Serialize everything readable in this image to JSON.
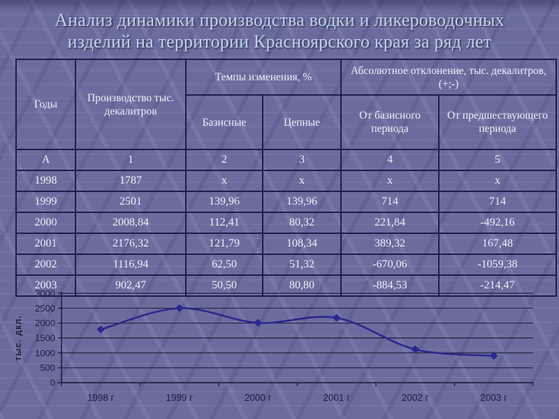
{
  "slide": {
    "title_lines": [
      "Анализ динамики производства водки и ликероводочных",
      "изделий на территории Красноярского края за ряд лет"
    ]
  },
  "table": {
    "header": {
      "col_years": "Годы",
      "col_production": "Производство тыс. декалитров",
      "group_rates": "Темпы изменения, %",
      "col_base": "Базисные",
      "col_chain": "Цепные",
      "group_abs": "Абсолютное отклонение, тыс. декалитров,  (+;-)",
      "col_from_base": "От базисного периода",
      "col_from_prev": "От предшес­твующего периода"
    },
    "rows": [
      [
        "А",
        "1",
        "2",
        "3",
        "4",
        "5"
      ],
      [
        "1998",
        "1787",
        "х",
        "х",
        "х",
        "х"
      ],
      [
        "1999",
        "2501",
        "139,96",
        "139,96",
        "714",
        "714"
      ],
      [
        "2000",
        "2008,84",
        "112,41",
        "80,32",
        "221,84",
        "-492,16"
      ],
      [
        "2001",
        "2176,32",
        "121,79",
        "108,34",
        "389,32",
        "167,48"
      ],
      [
        "2002",
        "1116,94",
        "62,50",
        "51,32",
        "-670,06",
        "-1059,38"
      ],
      [
        "2003",
        "902,47",
        "50,50",
        "80,80",
        "-884,53",
        "-214,47"
      ]
    ]
  },
  "chart_data": {
    "type": "line",
    "categories": [
      "1998 г",
      "1999 г",
      "2000 г",
      "2001 г",
      "2002 г",
      "2003 г"
    ],
    "series": [
      {
        "name": "Производство, тыс. декалитров",
        "values": [
          1787,
          2501,
          2008.84,
          2176.32,
          1116.94,
          902.47
        ]
      }
    ],
    "title": "",
    "xlabel": "",
    "ylabel": "тыс. дкл.",
    "ylim": [
      0,
      3000
    ],
    "yticks": [
      0,
      500,
      1000,
      1500,
      2000,
      2500,
      3000
    ],
    "grid": true,
    "legend": false,
    "smooth": true,
    "marker": "diamond",
    "colors": {
      "line": "#28288e",
      "axis_ink": "#1d1d3d",
      "gridline": "#1e1e3c"
    }
  }
}
